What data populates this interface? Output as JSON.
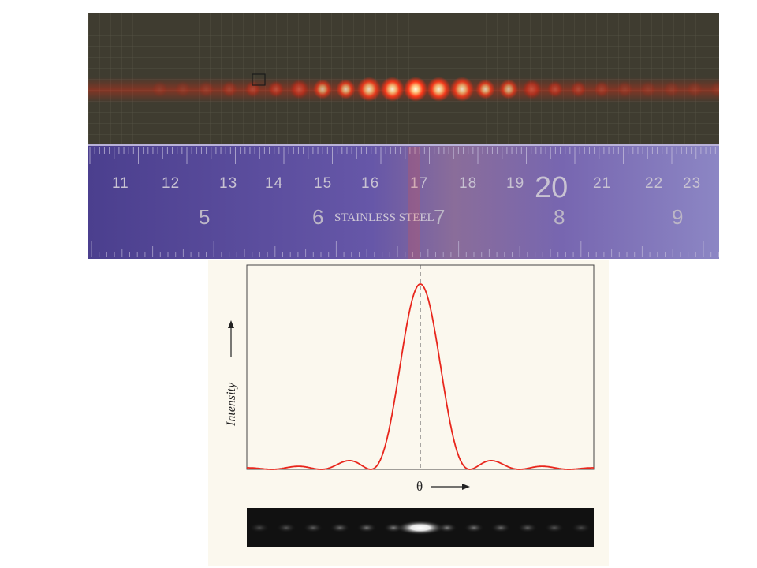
{
  "photo": {
    "ruler_cm_labels": [
      "11",
      "12",
      "13",
      "14",
      "15",
      "16",
      "17",
      "18",
      "19",
      "20",
      "21",
      "22",
      "23"
    ],
    "ruler_inch_labels": [
      "5",
      "6",
      "7",
      "8",
      "9"
    ],
    "steel_text": "STAINLESS STEEL",
    "colors": {
      "laser": "#ff3a1a",
      "ruler": "#6a5ab0",
      "paper": "#3f3c30"
    }
  },
  "figure": {
    "ylabel": "Intensity",
    "xlabel": "θ",
    "colors": {
      "curve": "#e8261c",
      "background": "#fbf8ee"
    }
  },
  "chart_data": {
    "type": "line",
    "title": "",
    "xlabel": "θ",
    "ylabel": "Intensity",
    "x": [
      -7,
      -6,
      -5,
      -4,
      -3,
      -2,
      -1.5,
      -1,
      -0.5,
      0,
      0.5,
      1,
      1.5,
      2,
      3,
      4,
      5,
      6,
      7
    ],
    "series": [
      {
        "values": [
          0.002,
          0.0,
          0.008,
          0.0,
          0.014,
          0.0,
          0.045,
          0.0,
          0.44,
          0.94,
          0.44,
          0.0,
          0.045,
          0.0,
          0.014,
          0.0,
          0.008,
          0.0,
          0.002
        ]
      }
    ],
    "center_line": "dashed",
    "grid": false
  }
}
